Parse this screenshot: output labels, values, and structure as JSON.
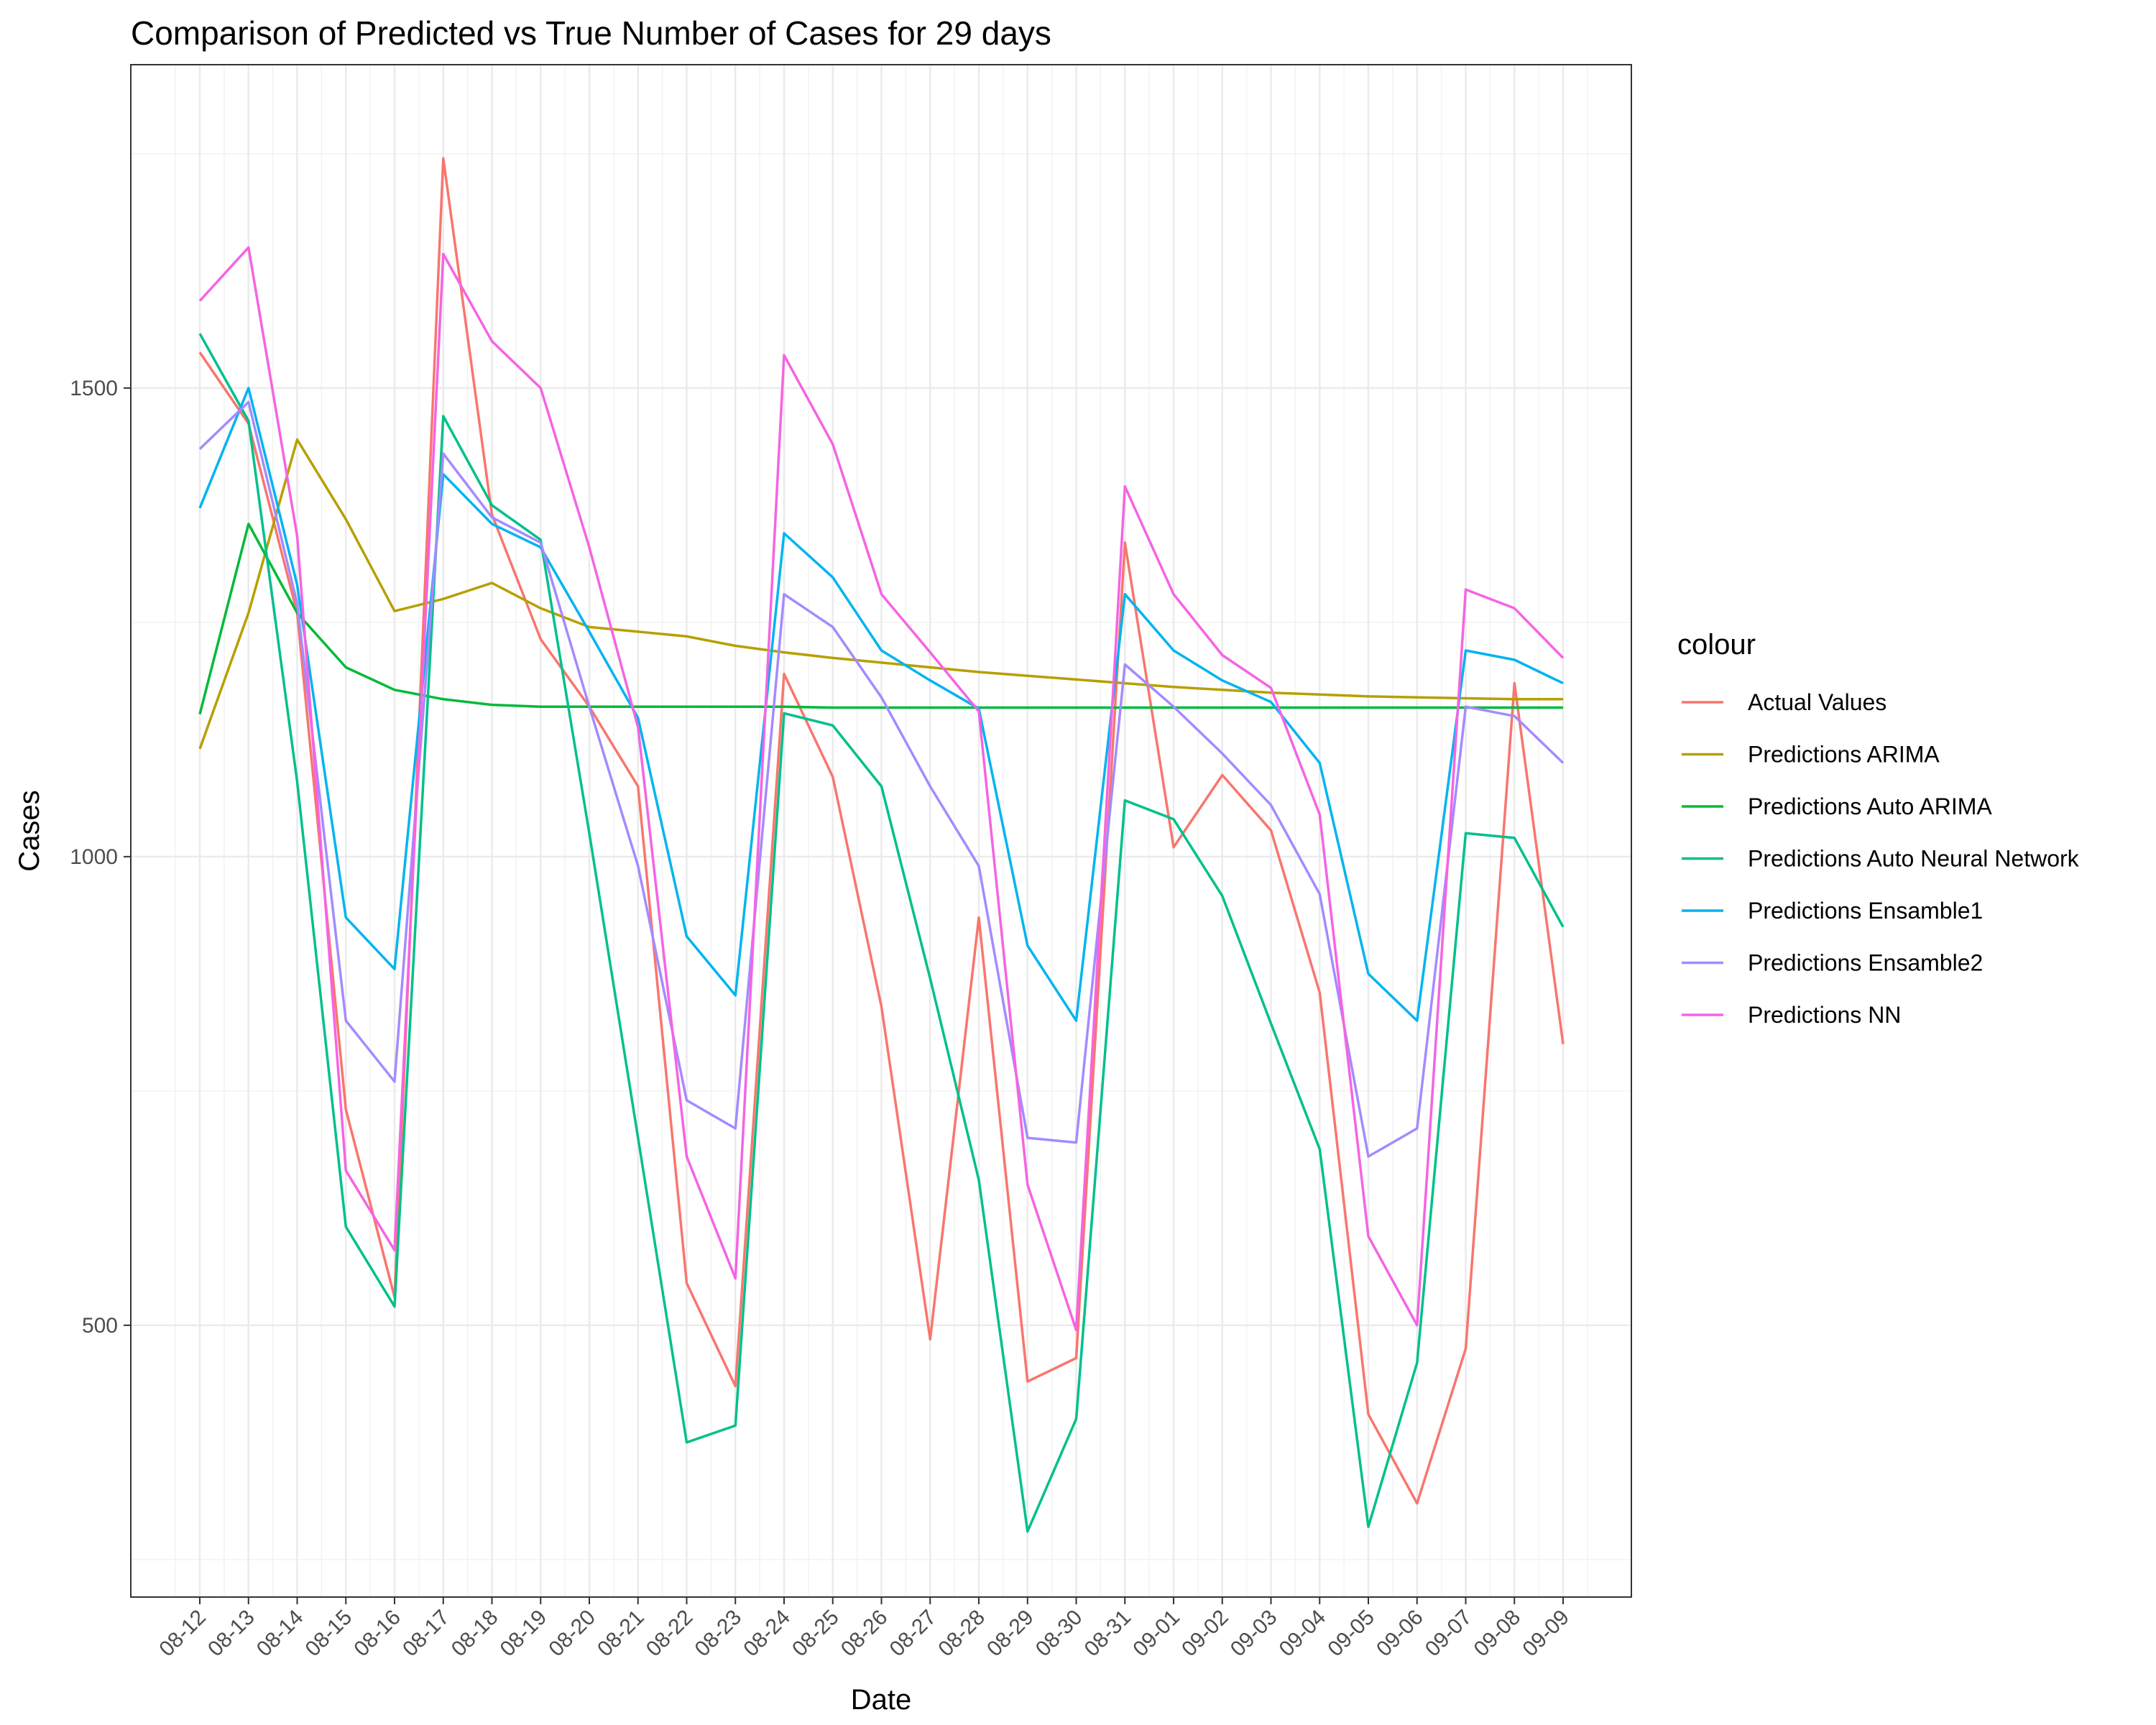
{
  "chart_data": {
    "type": "line",
    "title": "Comparison of Predicted vs True Number of Cases for 29 days",
    "xlabel": "Date",
    "ylabel": "Cases",
    "ylim": [
      210,
      1845
    ],
    "yticks": [
      500,
      1000,
      1500
    ],
    "grid": true,
    "legend": {
      "title": "colour",
      "position": "right"
    },
    "categories": [
      "08-12",
      "08-13",
      "08-14",
      "08-15",
      "08-16",
      "08-17",
      "08-18",
      "08-19",
      "08-20",
      "08-21",
      "08-22",
      "08-23",
      "08-24",
      "08-25",
      "08-26",
      "08-27",
      "08-28",
      "08-29",
      "08-30",
      "08-31",
      "09-01",
      "09-02",
      "09-03",
      "09-04",
      "09-05",
      "09-06",
      "09-07",
      "09-08",
      "09-09"
    ],
    "series": [
      {
        "name": "Actual Values",
        "color": "#F8766D",
        "values": [
          1538,
          1462,
          1260,
          730,
          530,
          1745,
          1365,
          1232,
          1160,
          1075,
          545,
          435,
          1195,
          1085,
          840,
          485,
          935,
          440,
          465,
          1335,
          1010,
          1087,
          1028,
          855,
          405,
          310,
          475,
          1185,
          800
        ]
      },
      {
        "name": "Predictions ARIMA",
        "color": "#B79F00",
        "values": [
          1115,
          1260,
          1445,
          1360,
          1262,
          1275,
          1292,
          1265,
          1245,
          1240,
          1235,
          1225,
          1218,
          1212,
          1207,
          1202,
          1197,
          1193,
          1189,
          1185,
          1181,
          1178,
          1175,
          1173,
          1171,
          1170,
          1169,
          1168,
          1168
        ]
      },
      {
        "name": "Predictions Auto ARIMA",
        "color": "#00BA38",
        "values": [
          1152,
          1355,
          1260,
          1202,
          1178,
          1168,
          1162,
          1160,
          1160,
          1160,
          1160,
          1160,
          1160,
          1159,
          1159,
          1159,
          1159,
          1159,
          1159,
          1159,
          1159,
          1159,
          1159,
          1159,
          1159,
          1159,
          1159,
          1159,
          1159
        ]
      },
      {
        "name": "Predictions Auto Neural Network",
        "color": "#00C08B",
        "values": [
          1558,
          1465,
          1080,
          605,
          520,
          1470,
          1375,
          1338,
          1025,
          700,
          375,
          393,
          1153,
          1140,
          1075,
          870,
          655,
          280,
          400,
          1060,
          1040,
          958,
          822,
          688,
          285,
          460,
          1025,
          1020,
          925
        ]
      },
      {
        "name": "Predictions Ensamble1",
        "color": "#00B4EF",
        "values": [
          1372,
          1500,
          1290,
          935,
          880,
          1408,
          1355,
          1330,
          1240,
          1148,
          915,
          852,
          1345,
          1298,
          1220,
          1188,
          1158,
          905,
          825,
          1280,
          1220,
          1188,
          1165,
          1100,
          875,
          825,
          1220,
          1210,
          1185
        ]
      },
      {
        "name": "Predictions Ensamble2",
        "color": "#A58AFF",
        "values": [
          1435,
          1485,
          1270,
          825,
          760,
          1430,
          1362,
          1335,
          1160,
          990,
          740,
          710,
          1280,
          1245,
          1170,
          1075,
          990,
          700,
          695,
          1205,
          1160,
          1110,
          1055,
          960,
          680,
          710,
          1160,
          1150,
          1100
        ]
      },
      {
        "name": "Predictions NN",
        "color": "#F564E3",
        "values": [
          1593,
          1650,
          1342,
          665,
          580,
          1643,
          1550,
          1500,
          1330,
          1138,
          680,
          550,
          1535,
          1440,
          1280,
          1218,
          1155,
          650,
          495,
          1395,
          1280,
          1215,
          1180,
          1045,
          595,
          500,
          1285,
          1265,
          1212
        ]
      }
    ]
  }
}
